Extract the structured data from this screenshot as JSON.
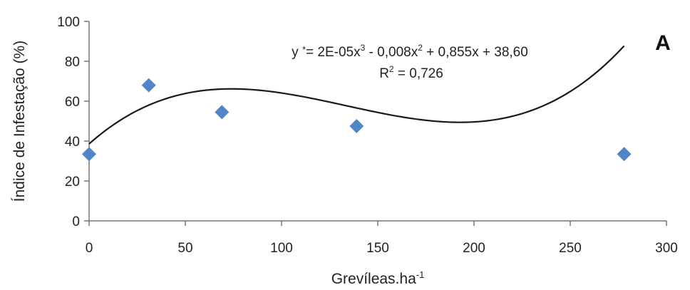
{
  "chart_data": {
    "type": "scatter",
    "title": "",
    "panel_label": "A",
    "xlabel": "Grevíleas.ha",
    "xlabel_superscript": "-1",
    "ylabel": "Índice de Infestação (%)",
    "xlim": [
      0,
      300
    ],
    "ylim": [
      0,
      100
    ],
    "x_ticks": [
      0,
      50,
      100,
      150,
      200,
      250,
      300
    ],
    "y_ticks": [
      0,
      20,
      40,
      60,
      80,
      100
    ],
    "grid": false,
    "legend": "none",
    "marker_color": "#4f86c6",
    "line_color": "#1a1a1a",
    "series": [
      {
        "x": [
          0,
          31,
          69,
          139,
          278
        ],
        "y": [
          33.5,
          68,
          54.5,
          47.5,
          33.5
        ]
      }
    ],
    "trendline": {
      "type": "polynomial",
      "coefficients": [
        38.6,
        0.855,
        -0.008,
        2e-05
      ],
      "equation": {
        "prefix": "y ",
        "star": "*",
        "part1": "= 2E-05x",
        "sup1": "3",
        "part2": " - 0,008x",
        "sup2": "2",
        "part3": " + 0,855x + 38,60"
      },
      "r_squared": {
        "prefix": "R",
        "sup": "2",
        "value": " = 0,726"
      }
    }
  }
}
